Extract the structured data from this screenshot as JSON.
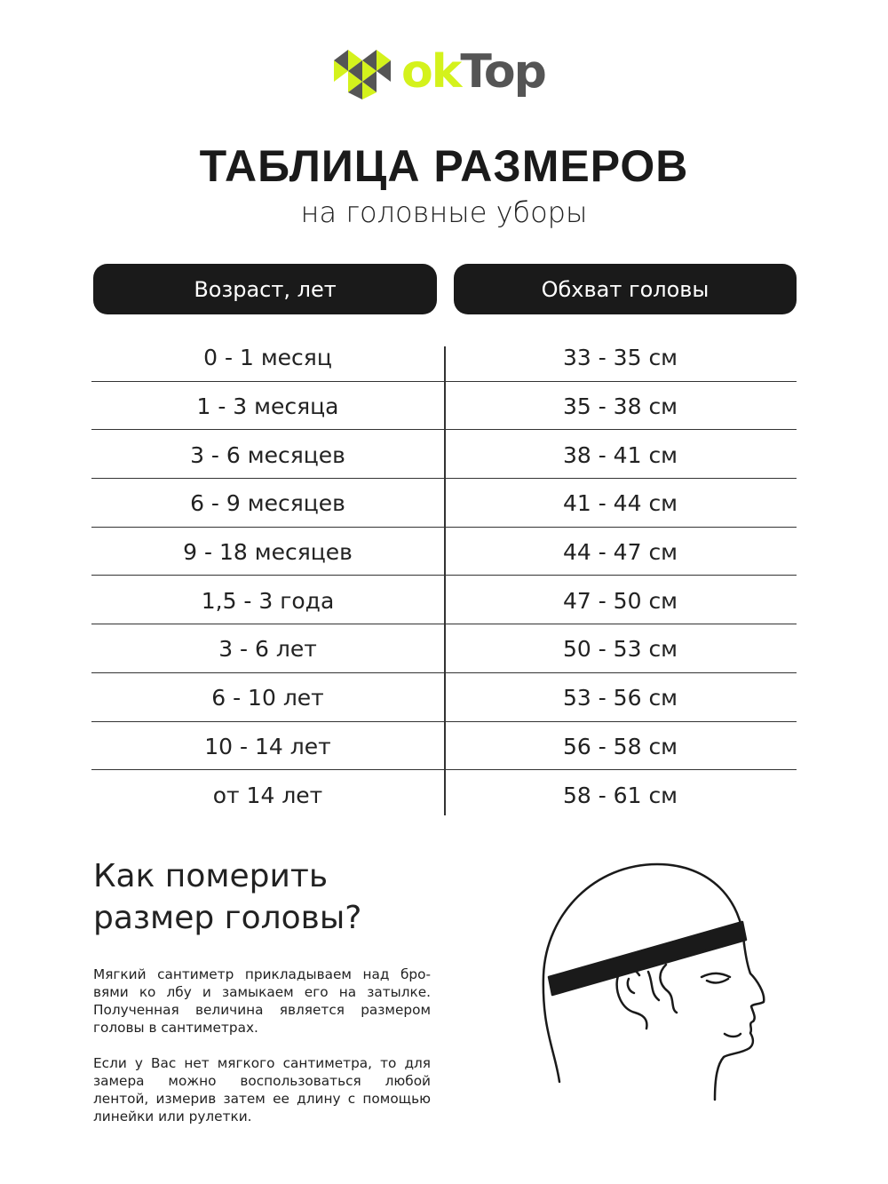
{
  "logo": {
    "text_ok": "ok",
    "text_top": "Top",
    "colors": {
      "lime": "#d4f21c",
      "gray": "#555555"
    }
  },
  "title": "ТАБЛИЦА РАЗМЕРОВ",
  "subtitle": "на головные уборы",
  "table": {
    "headers": [
      "Возраст, лет",
      "Обхват головы"
    ],
    "rows": [
      [
        "0 - 1 месяц",
        "33 - 35 см"
      ],
      [
        "1 - 3 месяца",
        "35 - 38 см"
      ],
      [
        "3 - 6 месяцев",
        "38 - 41 см"
      ],
      [
        "6 - 9 месяцев",
        "41 - 44 см"
      ],
      [
        "9 - 18 месяцев",
        "44 - 47 см"
      ],
      [
        "1,5 - 3 года",
        "47 - 50 см"
      ],
      [
        "3 - 6 лет",
        "50 - 53 см"
      ],
      [
        "6 - 10 лет",
        "53 - 56 см"
      ],
      [
        "10 - 14 лет",
        "56 - 58 см"
      ],
      [
        "от 14 лет",
        "58 - 61 см"
      ]
    ]
  },
  "howto": {
    "heading_line1": "Как померить",
    "heading_line2": "размер головы?",
    "paragraph1": "Мягкий сантиметр прикладываем над бро­вями ко лбу и замыкаем его на затылке. Полученная величина является размером головы в сантиметрах.",
    "paragraph2": "Если у Вас нет мягкого сантиметра, то для замера можно воспользоваться любой лентой, измерив затем ее длину с помо­щью линейки или рулетки."
  },
  "illustration": "head-with-measuring-tape"
}
